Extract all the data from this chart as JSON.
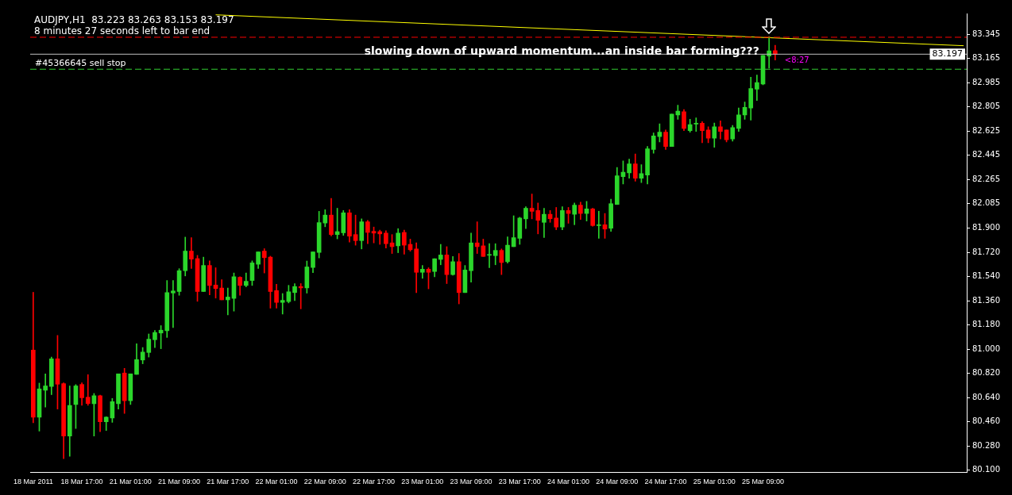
{
  "chart_data": {
    "type": "candlestick",
    "title": "AUDJPY,H1  83.223 83.263 83.153 83.197",
    "subtitle": "8 minutes 27 seconds left to bar end",
    "annotations": [
      "slowing down of upward momentum...an inside bar forming???",
      "<8:27"
    ],
    "categories": [
      "18 Mar 2011",
      null,
      null,
      null,
      null,
      null,
      null,
      null,
      "18 Mar 17:00",
      null,
      null,
      null,
      null,
      null,
      null,
      null,
      "21 Mar 01:00",
      null,
      null,
      null,
      null,
      null,
      null,
      null,
      "21 Mar 09:00",
      null,
      null,
      null,
      null,
      null,
      null,
      null,
      "21 Mar 17:00",
      null,
      null,
      null,
      null,
      null,
      null,
      null,
      "22 Mar 01:00",
      null,
      null,
      null,
      null,
      null,
      null,
      null,
      "22 Mar 09:00",
      null,
      null,
      null,
      null,
      null,
      null,
      null,
      "22 Mar 17:00",
      null,
      null,
      null,
      null,
      null,
      null,
      null,
      "23 Mar 01:00",
      null,
      null,
      null,
      null,
      null,
      null,
      null,
      "23 Mar 09:00",
      null,
      null,
      null,
      null,
      null,
      null,
      null,
      "23 Mar 17:00",
      null,
      null,
      null,
      null,
      null,
      null,
      null,
      "24 Mar 01:00",
      null,
      null,
      null,
      null,
      null,
      null,
      null,
      "24 Mar 09:00",
      null,
      null,
      null,
      null,
      null,
      null,
      null,
      "24 Mar 17:00",
      null,
      null,
      null,
      null,
      null,
      null,
      null,
      "25 Mar 01:00",
      null,
      null,
      null,
      null,
      null,
      null,
      null,
      "25 Mar 09:00",
      null,
      null,
      null,
      null,
      null,
      null,
      null,
      null,
      null,
      null,
      null,
      null,
      null,
      null,
      null,
      null,
      null,
      null,
      null,
      null,
      null,
      null,
      null,
      null,
      null,
      null,
      null,
      null,
      null,
      null,
      null,
      null,
      null
    ],
    "ohlc": [
      [
        80.994,
        81.424,
        80.453,
        80.494
      ],
      [
        80.494,
        80.748,
        80.391,
        80.705
      ],
      [
        80.695,
        80.817,
        80.57,
        80.727
      ],
      [
        80.723,
        80.942,
        80.662,
        80.929
      ],
      [
        80.929,
        81.103,
        80.555,
        80.74
      ],
      [
        80.744,
        80.75,
        80.185,
        80.354
      ],
      [
        80.354,
        80.727,
        80.204,
        80.582
      ],
      [
        80.589,
        80.737,
        80.41,
        80.727
      ],
      [
        80.738,
        80.75,
        80.583,
        80.639
      ],
      [
        80.643,
        80.811,
        80.583,
        80.596
      ],
      [
        80.595,
        80.671,
        80.354,
        80.654
      ],
      [
        80.654,
        80.658,
        80.387,
        80.46
      ],
      [
        80.46,
        80.497,
        80.395,
        80.494
      ],
      [
        80.488,
        80.634,
        80.456,
        80.61
      ],
      [
        80.595,
        80.817,
        80.555,
        80.817
      ],
      [
        80.823,
        80.858,
        80.522,
        80.617
      ],
      [
        80.617,
        80.817,
        80.589,
        80.817
      ],
      [
        80.813,
        81.041,
        80.813,
        80.923
      ],
      [
        80.92,
        81.013,
        80.892,
        80.979
      ],
      [
        80.976,
        81.114,
        80.942,
        81.075
      ],
      [
        81.071,
        81.14,
        81.013,
        81.125
      ],
      [
        81.121,
        81.176,
        81.004,
        81.142
      ],
      [
        81.138,
        81.512,
        81.088,
        81.422
      ],
      [
        81.419,
        81.512,
        81.161,
        81.434
      ],
      [
        81.43,
        81.6,
        81.402,
        81.585
      ],
      [
        81.585,
        81.835,
        81.546,
        81.731
      ],
      [
        81.731,
        81.831,
        81.602,
        81.671
      ],
      [
        81.675,
        81.699,
        81.357,
        81.43
      ],
      [
        81.43,
        81.686,
        81.43,
        81.624
      ],
      [
        81.624,
        81.658,
        81.405,
        81.475
      ],
      [
        81.478,
        81.607,
        81.381,
        81.452
      ],
      [
        81.456,
        81.518,
        81.368,
        81.368
      ],
      [
        81.368,
        81.456,
        81.256,
        81.389
      ],
      [
        81.379,
        81.568,
        81.284,
        81.54
      ],
      [
        81.536,
        81.54,
        81.402,
        81.475
      ],
      [
        81.475,
        81.568,
        81.465,
        81.506
      ],
      [
        81.512,
        81.658,
        81.475,
        81.643
      ],
      [
        81.633,
        81.725,
        81.602,
        81.725
      ],
      [
        81.731,
        81.749,
        81.568,
        81.682
      ],
      [
        81.686,
        81.693,
        81.306,
        81.43
      ],
      [
        81.437,
        81.484,
        81.306,
        81.349
      ],
      [
        81.349,
        81.415,
        81.262,
        81.364
      ],
      [
        81.355,
        81.476,
        81.345,
        81.428
      ],
      [
        81.422,
        81.489,
        81.362,
        81.467
      ],
      [
        81.467,
        81.489,
        81.301,
        81.457
      ],
      [
        81.457,
        81.657,
        81.418,
        81.613
      ],
      [
        81.609,
        81.725,
        81.57,
        81.725
      ],
      [
        81.721,
        82.027,
        81.68,
        81.943
      ],
      [
        81.94,
        82.039,
        81.912,
        81.999
      ],
      [
        81.999,
        82.123,
        81.844,
        81.854
      ],
      [
        81.854,
        82.05,
        81.822,
        81.876
      ],
      [
        81.867,
        82.033,
        81.848,
        82.016
      ],
      [
        82.016,
        82.039,
        81.798,
        81.842
      ],
      [
        81.854,
        81.999,
        81.775,
        81.809
      ],
      [
        81.809,
        81.971,
        81.747,
        81.949
      ],
      [
        81.949,
        81.96,
        81.786,
        81.87
      ],
      [
        81.878,
        81.91,
        81.792,
        81.865
      ],
      [
        81.876,
        81.887,
        81.781,
        81.859
      ],
      [
        81.865,
        81.882,
        81.753,
        81.786
      ],
      [
        81.792,
        81.854,
        81.713,
        81.764
      ],
      [
        81.77,
        81.898,
        81.719,
        81.865
      ],
      [
        81.87,
        81.887,
        81.708,
        81.775
      ],
      [
        81.781,
        81.82,
        81.73,
        81.741
      ],
      [
        81.747,
        81.792,
        81.422,
        81.573
      ],
      [
        81.573,
        81.624,
        81.528,
        81.596
      ],
      [
        81.596,
        81.607,
        81.45,
        81.573
      ],
      [
        81.579,
        81.674,
        81.54,
        81.674
      ],
      [
        81.669,
        81.781,
        81.629,
        81.702
      ],
      [
        81.702,
        81.764,
        81.489,
        81.556
      ],
      [
        81.556,
        81.691,
        81.551,
        81.652
      ],
      [
        81.652,
        81.713,
        81.338,
        81.422
      ],
      [
        81.422,
        81.624,
        81.422,
        81.59
      ],
      [
        81.585,
        81.865,
        81.5,
        81.792
      ],
      [
        81.792,
        81.949,
        81.713,
        81.764
      ],
      [
        81.77,
        81.82,
        81.691,
        81.691
      ],
      [
        81.7,
        81.786,
        81.607,
        81.705
      ],
      [
        81.697,
        81.786,
        81.629,
        81.736
      ],
      [
        81.736,
        81.747,
        81.556,
        81.646
      ],
      [
        81.652,
        81.837,
        81.641,
        81.775
      ],
      [
        81.764,
        81.994,
        81.764,
        81.831
      ],
      [
        81.826,
        81.983,
        81.781,
        81.977
      ],
      [
        81.971,
        82.061,
        81.898,
        82.05
      ],
      [
        82.05,
        82.156,
        81.971,
        82.027
      ],
      [
        82.033,
        82.089,
        81.859,
        81.96
      ],
      [
        81.945,
        82.05,
        81.832,
        82.005
      ],
      [
        82.005,
        82.033,
        81.945,
        81.972
      ],
      [
        81.977,
        82.056,
        81.89,
        81.91
      ],
      [
        81.91,
        82.061,
        81.89,
        82.033
      ],
      [
        82.033,
        82.056,
        81.938,
        82.011
      ],
      [
        82.005,
        82.089,
        81.927,
        82.073
      ],
      [
        82.073,
        82.095,
        81.966,
        82.011
      ],
      [
        82.011,
        82.101,
        81.955,
        82.045
      ],
      [
        82.045,
        82.05,
        81.916,
        81.921
      ],
      [
        81.921,
        82.028,
        81.826,
        81.927
      ],
      [
        81.927,
        82.011,
        81.826,
        81.895
      ],
      [
        81.901,
        82.117,
        81.878,
        82.084
      ],
      [
        82.078,
        82.353,
        82.078,
        82.291
      ],
      [
        82.286,
        82.403,
        82.23,
        82.319
      ],
      [
        82.314,
        82.415,
        82.274,
        82.381
      ],
      [
        82.381,
        82.454,
        82.252,
        82.274
      ],
      [
        82.274,
        82.375,
        82.241,
        82.308
      ],
      [
        82.297,
        82.51,
        82.23,
        82.493
      ],
      [
        82.487,
        82.611,
        82.459,
        82.588
      ],
      [
        82.583,
        82.678,
        82.543,
        82.616
      ],
      [
        82.616,
        82.633,
        82.487,
        82.51
      ],
      [
        82.51,
        82.751,
        82.51,
        82.751
      ],
      [
        82.745,
        82.818,
        82.712,
        82.773
      ],
      [
        82.768,
        82.785,
        82.628,
        82.644
      ],
      [
        82.628,
        82.712,
        82.616,
        82.672
      ],
      [
        82.676,
        82.723,
        82.622,
        82.683
      ],
      [
        82.683,
        82.695,
        82.538,
        82.628
      ],
      [
        82.633,
        82.656,
        82.538,
        82.571
      ],
      [
        82.571,
        82.684,
        82.504,
        82.656
      ],
      [
        82.656,
        82.7,
        82.566,
        82.622
      ],
      [
        82.633,
        82.633,
        82.543,
        82.56
      ],
      [
        82.566,
        82.667,
        82.549,
        82.65
      ],
      [
        82.644,
        82.796,
        82.622,
        82.745
      ],
      [
        82.745,
        82.841,
        82.712,
        82.801
      ],
      [
        82.796,
        83.025,
        82.706,
        82.941
      ],
      [
        82.936,
        83.042,
        82.852,
        82.986
      ],
      [
        82.975,
        83.188,
        82.969,
        83.188
      ],
      [
        83.183,
        83.328,
        83.093,
        83.222
      ],
      [
        83.223,
        83.263,
        83.153,
        83.197
      ],
      null,
      null,
      null,
      null,
      null,
      null,
      null,
      null,
      null,
      null,
      null,
      null,
      null,
      null,
      null,
      null,
      null,
      null,
      null,
      null,
      null,
      null,
      null,
      null,
      null,
      null,
      null,
      null,
      null,
      null,
      null
    ],
    "colors": [
      "#ff0000",
      "#2bd62b",
      "#2bd62b",
      "#2bd62b",
      "#ff0000",
      "#ff0000",
      "#2bd62b",
      "#2bd62b",
      "#ff0000",
      "#ff0000",
      "#2bd62b",
      "#ff0000",
      "#2bd62b",
      "#2bd62b",
      "#2bd62b",
      "#ff0000",
      "#2bd62b",
      "#2bd62b",
      "#2bd62b",
      "#2bd62b",
      "#2bd62b",
      "#2bd62b",
      "#2bd62b",
      "#2bd62b",
      "#2bd62b",
      "#2bd62b",
      "#ff0000",
      "#ff0000",
      "#2bd62b",
      "#ff0000",
      "#ff0000",
      "#ff0000",
      "#2bd62b",
      "#2bd62b",
      "#ff0000",
      "#2bd62b",
      "#2bd62b",
      "#2bd62b",
      "#ff0000",
      "#ff0000",
      "#ff0000",
      "#2bd62b",
      "#2bd62b",
      "#2bd62b",
      "#ff0000",
      "#2bd62b",
      "#2bd62b",
      "#2bd62b",
      "#2bd62b",
      "#ff0000",
      "#2bd62b",
      "#2bd62b",
      "#ff0000",
      "#ff0000",
      "#2bd62b",
      "#ff0000",
      "#ff0000",
      "#ff0000",
      "#ff0000",
      "#ff0000",
      "#2bd62b",
      "#ff0000",
      "#ff0000",
      "#ff0000",
      "#2bd62b",
      "#ff0000",
      "#2bd62b",
      "#2bd62b",
      "#ff0000",
      "#2bd62b",
      "#ff0000",
      "#2bd62b",
      "#2bd62b",
      "#ff0000",
      "#ff0000",
      "#2bd62b",
      "#2bd62b",
      "#ff0000",
      "#2bd62b",
      "#2bd62b",
      "#2bd62b",
      "#2bd62b",
      "#ff0000",
      "#ff0000",
      "#2bd62b",
      "#ff0000",
      "#ff0000",
      "#2bd62b",
      "#ff0000",
      "#2bd62b",
      "#ff0000",
      "#2bd62b",
      "#ff0000",
      "#2bd62b",
      "#ff0000",
      "#2bd62b",
      "#2bd62b",
      "#2bd62b",
      "#2bd62b",
      "#ff0000",
      "#2bd62b",
      "#2bd62b",
      "#2bd62b",
      "#2bd62b",
      "#ff0000",
      "#2bd62b",
      "#2bd62b",
      "#ff0000",
      "#2bd62b",
      "#2bd62b",
      "#ff0000",
      "#ff0000",
      "#2bd62b",
      "#ff0000",
      "#ff0000",
      "#2bd62b",
      "#2bd62b",
      "#2bd62b",
      "#2bd62b",
      "#2bd62b",
      "#2bd62b",
      "#2bd62b",
      "#ff0000",
      null,
      null,
      null,
      null,
      null,
      null,
      null,
      null,
      null,
      null,
      null,
      null,
      null,
      null,
      null,
      null,
      null,
      null,
      null,
      null,
      null,
      null,
      null,
      null,
      null,
      null,
      null,
      null,
      null,
      null,
      null
    ],
    "series": [
      {
        "type": "line",
        "color": "#ffff00",
        "values": [
          null,
          null,
          null,
          null,
          null,
          null,
          null,
          null,
          null,
          null,
          null,
          null,
          null,
          null,
          null,
          null,
          null,
          null,
          null,
          null,
          null,
          null,
          null,
          null,
          null,
          null,
          null,
          null,
          null,
          null,
          83.49,
          null,
          null,
          null,
          null,
          null,
          null,
          null,
          null,
          null,
          null,
          null,
          null,
          null,
          null,
          null,
          null,
          null,
          null,
          null,
          null,
          null,
          null,
          null,
          null,
          null,
          null,
          null,
          null,
          null,
          null,
          null,
          null,
          null,
          null,
          null,
          null,
          null,
          null,
          null,
          null,
          null,
          null,
          null,
          null,
          null,
          null,
          null,
          null,
          null,
          null,
          null,
          null,
          null,
          null,
          null,
          null,
          null,
          null,
          null,
          null,
          null,
          null,
          null,
          null,
          null,
          null,
          null,
          null,
          null,
          null,
          null,
          null,
          null,
          null,
          null,
          null,
          null,
          null,
          null,
          null,
          null,
          null,
          null,
          null,
          null,
          null,
          null,
          null,
          null,
          null,
          null,
          null,
          null,
          null,
          null,
          null,
          null,
          null,
          null,
          null,
          null,
          null,
          null,
          null,
          null,
          null,
          null,
          null,
          null,
          null,
          null,
          null,
          null,
          null,
          null,
          null,
          null,
          null,
          null,
          null,
          null,
          null,
          83.26
        ]
      }
    ],
    "ref_lines": [
      {
        "axis": "y",
        "value": 83.323,
        "color": "#ff0000",
        "line_style": "dashed"
      },
      {
        "axis": "y",
        "value": 83.197,
        "color": "#c0c0c0",
        "label": "83.197"
      },
      {
        "axis": "y",
        "value": 83.085,
        "color": "#32cd32",
        "line_style": "dashed",
        "label": "#45366645 sell stop"
      }
    ],
    "ylim": [
      80.085,
      83.5
    ],
    "yticks": [
      83.345,
      83.165,
      82.985,
      82.805,
      82.625,
      82.445,
      82.265,
      82.085,
      {
        "value": 81.9,
        "label": "81.900"
      },
      {
        "value": 81.72,
        "label": "81.720"
      },
      {
        "value": 81.54,
        "label": "81.540"
      },
      {
        "value": 81.36,
        "label": "81.360"
      },
      {
        "value": 81.18,
        "label": "81.180"
      },
      {
        "value": 81.0,
        "label": "81.000"
      },
      {
        "value": 80.82,
        "label": "80.820"
      },
      {
        "value": 80.64,
        "label": "80.640"
      },
      {
        "value": 80.46,
        "label": "80.460"
      },
      {
        "value": 80.28,
        "label": "80.280"
      },
      {
        "value": 80.1,
        "label": "80.100"
      }
    ],
    "grid": false,
    "legend": false
  }
}
